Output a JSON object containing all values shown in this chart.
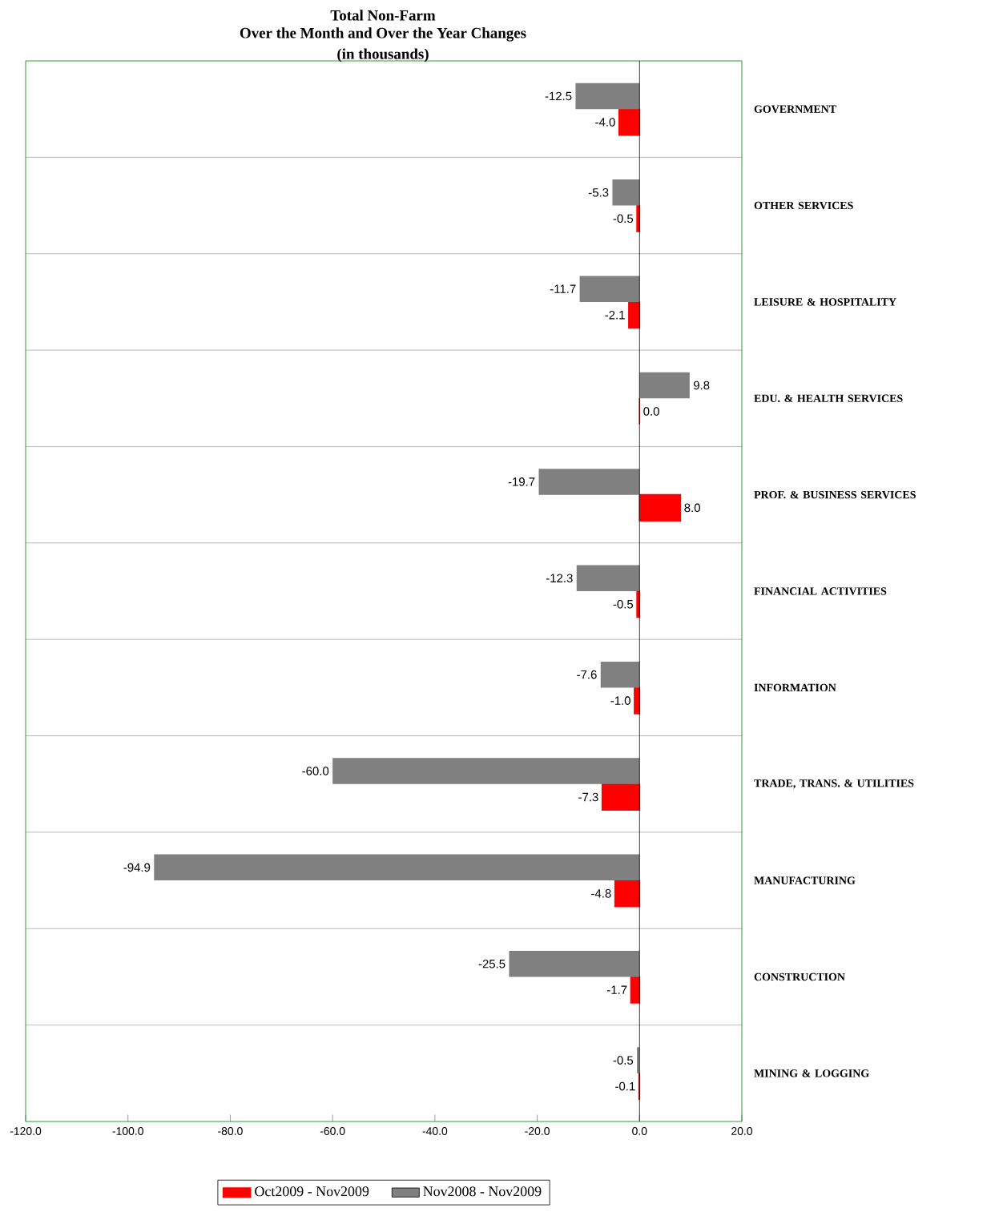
{
  "chart_data": {
    "type": "bar",
    "orientation": "horizontal",
    "title": "Total Non-Farm",
    "subtitle": "Over the Month and Over the Year Changes",
    "annotations": [
      "(in thousands)"
    ],
    "categories": [
      "GOVERNMENT",
      "OTHER SERVICES",
      "LEISURE & HOSPITALITY",
      "EDU. & HEALTH SERVICES",
      "PROF. & BUSINESS SERVICES",
      "FINANCIAL ACTIVITIES",
      "INFORMATION",
      "TRADE, TRANS. & UTILITIES",
      "MANUFACTURING",
      "CONSTRUCTION",
      "MINING & LOGGING"
    ],
    "series": [
      {
        "name": "Oct2009 - Nov2009",
        "color": "#ff0000",
        "values": [
          -4.0,
          -0.5,
          -2.1,
          0.0,
          8.0,
          -0.5,
          -1.0,
          -7.3,
          -4.8,
          -1.7,
          -0.1
        ],
        "value_labels": [
          "-4.0",
          "-0.5",
          "-2.1",
          "0.0",
          "8.0",
          "-0.5",
          "-1.0",
          "-7.3",
          "-4.8",
          "-1.7",
          "-0.1"
        ]
      },
      {
        "name": "Nov2008 - Nov2009",
        "color": "#808080",
        "values": [
          -12.5,
          -5.3,
          -11.7,
          9.8,
          -19.7,
          -12.3,
          -7.6,
          -60.0,
          -94.9,
          -25.5,
          -0.5
        ],
        "value_labels": [
          "-12.5",
          "-5.3",
          "-11.7",
          "9.8",
          "-19.7",
          "-12.3",
          "-7.6",
          "-60.0",
          "-94.9",
          "-25.5",
          "-0.5"
        ]
      }
    ],
    "xlim": [
      -120,
      20
    ],
    "xticks": [
      {
        "value": -120,
        "label": "-120.0"
      },
      {
        "value": -100,
        "label": "-100.0"
      },
      {
        "value": -80,
        "label": "-80.0"
      },
      {
        "value": -60,
        "label": "-60.0"
      },
      {
        "value": -40,
        "label": "-40.0"
      },
      {
        "value": -20,
        "label": "-20.0"
      },
      {
        "value": 0,
        "label": "0.0"
      },
      {
        "value": 20,
        "label": "20.0"
      }
    ],
    "grid": "y",
    "legend": "bottom"
  }
}
